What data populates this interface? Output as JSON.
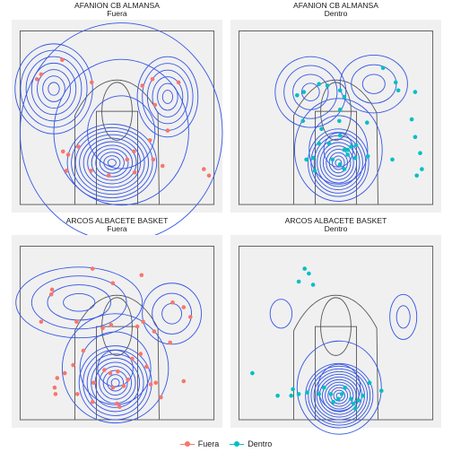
{
  "chart_data": [
    {
      "type": "scatter",
      "title": "AFANION CB ALMANSA",
      "subtitle": "Fuera",
      "series": "Fuera",
      "points": [
        [
          -9.5,
          6.8
        ],
        [
          -9.0,
          7.1
        ],
        [
          -6.5,
          8.0
        ],
        [
          -3.0,
          6.6
        ],
        [
          3.0,
          6.4
        ],
        [
          4.2,
          6.8
        ],
        [
          4.5,
          5.2
        ],
        [
          7.3,
          6.6
        ],
        [
          -4.6,
          2.6
        ],
        [
          -6.4,
          2.3
        ],
        [
          -6.0,
          1.1
        ],
        [
          -5.8,
          2.1
        ],
        [
          -3.1,
          1.1
        ],
        [
          -1.0,
          0.8
        ],
        [
          1.2,
          1.8
        ],
        [
          2.1,
          1.0
        ],
        [
          2.0,
          2.3
        ],
        [
          3.9,
          3.0
        ],
        [
          4.3,
          1.8
        ],
        [
          5.4,
          1.4
        ],
        [
          6.0,
          3.6
        ],
        [
          10.3,
          1.2
        ],
        [
          10.9,
          0.8
        ]
      ],
      "contour_centers": [
        [
          -7.5,
          6.2
        ],
        [
          6.0,
          5.7
        ],
        [
          -0.6,
          1.6
        ]
      ]
    },
    {
      "type": "scatter",
      "title": "AFANION CB ALMANSA",
      "subtitle": "Dentro",
      "series": "Dentro",
      "points": [
        [
          -4.6,
          5.8
        ],
        [
          -3.8,
          6.0
        ],
        [
          -2.0,
          6.5
        ],
        [
          -1.0,
          6.4
        ],
        [
          -3.9,
          4.2
        ],
        [
          0.5,
          6.1
        ],
        [
          1.0,
          5.7
        ],
        [
          0.5,
          4.9
        ],
        [
          5.6,
          7.5
        ],
        [
          7.1,
          6.6
        ],
        [
          7.4,
          6.1
        ],
        [
          9.4,
          6.0
        ],
        [
          3.7,
          4.1
        ],
        [
          0.4,
          4.2
        ],
        [
          -2.0,
          2.8
        ],
        [
          -1.7,
          3.7
        ],
        [
          -0.8,
          2.8
        ],
        [
          0.5,
          3.3
        ],
        [
          1.4,
          2.4
        ],
        [
          1.8,
          2.6
        ],
        [
          2.4,
          2.7
        ],
        [
          1.4,
          2.1
        ],
        [
          2.3,
          1.9
        ],
        [
          3.8,
          2.0
        ],
        [
          -0.4,
          1.8
        ],
        [
          0.5,
          1.5
        ],
        [
          1.0,
          1.2
        ],
        [
          1.0,
          2.4
        ],
        [
          -2.7,
          1.9
        ],
        [
          -3.5,
          1.8
        ],
        [
          -2.5,
          1.1
        ],
        [
          6.7,
          1.8
        ],
        [
          9.0,
          4.3
        ],
        [
          9.4,
          3.2
        ],
        [
          10.0,
          2.2
        ],
        [
          10.2,
          1.2
        ],
        [
          9.6,
          0.8
        ]
      ],
      "contour_centers": [
        [
          -3.0,
          6.0
        ],
        [
          4.5,
          6.5
        ],
        [
          0.3,
          1.6
        ]
      ]
    },
    {
      "type": "scatter",
      "title": "ARCOS ALBACETE BASKET",
      "subtitle": "Fuera",
      "series": "Fuera",
      "points": [
        [
          -2.9,
          8.4
        ],
        [
          -0.5,
          7.5
        ],
        [
          2.9,
          8.0
        ],
        [
          -7.7,
          7.1
        ],
        [
          -7.8,
          6.8
        ],
        [
          7.9,
          6.0
        ],
        [
          8.7,
          5.4
        ],
        [
          6.6,
          6.3
        ],
        [
          -4.8,
          5.1
        ],
        [
          -1.7,
          4.7
        ],
        [
          -0.7,
          4.9
        ],
        [
          2.4,
          4.8
        ],
        [
          3.1,
          5.1
        ],
        [
          4.4,
          4.5
        ],
        [
          -9.0,
          5.1
        ],
        [
          6.3,
          3.8
        ],
        [
          -4.0,
          3.3
        ],
        [
          -1.5,
          2.1
        ],
        [
          -0.8,
          1.9
        ],
        [
          0.1,
          2.0
        ],
        [
          -5.2,
          2.4
        ],
        [
          -6.2,
          1.9
        ],
        [
          -2.8,
          1.3
        ],
        [
          -0.5,
          1.0
        ],
        [
          0.8,
          1.1
        ],
        [
          1.3,
          1.5
        ],
        [
          1.8,
          2.8
        ],
        [
          2.8,
          3.1
        ],
        [
          3.5,
          2.3
        ],
        [
          4.0,
          1.2
        ],
        [
          4.6,
          1.3
        ],
        [
          -7.1,
          1.6
        ],
        [
          -7.4,
          1.0
        ],
        [
          -7.3,
          0.6
        ],
        [
          -4.7,
          0.6
        ],
        [
          -2.9,
          0.1
        ],
        [
          0.0,
          0.0
        ],
        [
          0.3,
          -0.2
        ],
        [
          5.2,
          0.4
        ],
        [
          7.9,
          1.4
        ]
      ],
      "contour_centers": [
        [
          -4.5,
          6.3
        ],
        [
          6.5,
          5.6
        ],
        [
          -0.2,
          1.3
        ]
      ]
    },
    {
      "type": "scatter",
      "title": "ARCOS ALBACETE BASKET",
      "subtitle": "Dentro",
      "series": "Dentro",
      "points": [
        [
          -3.7,
          8.4
        ],
        [
          -3.2,
          8.1
        ],
        [
          -4.4,
          7.6
        ],
        [
          -2.7,
          7.4
        ],
        [
          -9.9,
          1.9
        ],
        [
          -5.1,
          0.9
        ],
        [
          -5.3,
          0.5
        ],
        [
          -4.4,
          0.6
        ],
        [
          -6.9,
          0.5
        ],
        [
          -3.4,
          0.7
        ],
        [
          -2.0,
          0.6
        ],
        [
          -1.4,
          1.0
        ],
        [
          -0.3,
          0.1
        ],
        [
          0.7,
          0.6
        ],
        [
          1.1,
          1.0
        ],
        [
          1.8,
          0.3
        ],
        [
          2.1,
          0.0
        ],
        [
          2.3,
          -0.3
        ],
        [
          3.2,
          0.5
        ],
        [
          4.0,
          1.3
        ],
        [
          -0.6,
          0.6
        ],
        [
          0.3,
          0.3
        ],
        [
          2.7,
          0.2
        ],
        [
          5.4,
          0.8
        ]
      ],
      "contour_centers": [
        [
          -6.5,
          5.6
        ],
        [
          8.0,
          5.4
        ],
        [
          0.4,
          0.5
        ]
      ]
    }
  ],
  "legend": {
    "items": [
      {
        "label": "Fuera",
        "color": "#F8766D"
      },
      {
        "label": "Dentro",
        "color": "#00BFC4"
      }
    ]
  },
  "colors": {
    "fuera": "#F8766D",
    "dentro": "#00BFC4",
    "contour": "#3355E6",
    "court_line": "#555555",
    "panel_bg": "#F0F0F0"
  }
}
